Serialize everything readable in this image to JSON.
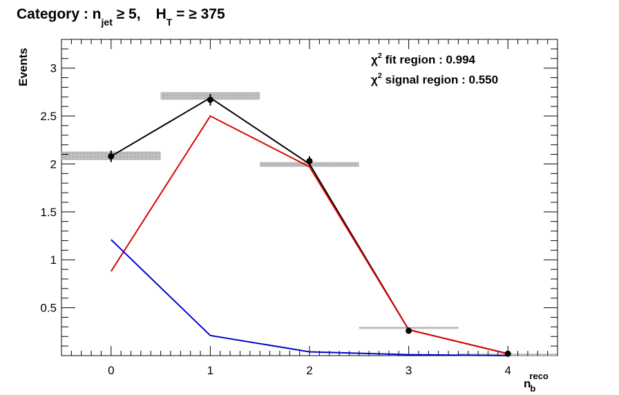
{
  "title": {
    "prefix": "Category : n",
    "njet_sub": "jet",
    "njet_rel": " ≥ 5,",
    "ht": "H",
    "ht_sub": "T",
    "ht_rel": " = ≥ 375"
  },
  "annotations": {
    "fit_region_label": " fit region : 0.994",
    "signal_region_label": " signal region : 0.550",
    "chi": "χ",
    "sup": "2"
  },
  "chart_data": {
    "type": "line",
    "ylabel": "Events",
    "xlabel_main": "n",
    "xlabel_sub": "b",
    "xlabel_sup": "reco",
    "xlim": [
      -0.5,
      4.5
    ],
    "ylim": [
      0.0,
      3.3
    ],
    "x_ticks": [
      0,
      1,
      2,
      3,
      4
    ],
    "x_tick_labels": [
      "0",
      "1",
      "2",
      "3",
      "4"
    ],
    "y_ticks": [
      0.5,
      1,
      1.5,
      2,
      2.5,
      3
    ],
    "y_tick_labels": [
      "0.5",
      "1",
      "1.5",
      "2",
      "2.5",
      "3"
    ],
    "data_points": {
      "x": [
        0,
        1,
        2,
        3,
        4
      ],
      "y": [
        2.08,
        2.67,
        2.03,
        0.26,
        0.02
      ],
      "yerr": [
        0.06,
        0.06,
        0.05,
        0.01,
        0.005
      ]
    },
    "uncertainty_bands": [
      {
        "center": 0,
        "low": 2.04,
        "high": 2.13
      },
      {
        "center": 1,
        "low": 2.67,
        "high": 2.75
      },
      {
        "center": 2,
        "low": 1.97,
        "high": 2.02
      },
      {
        "center": 3,
        "low": 0.28,
        "high": 0.3
      },
      {
        "center": 4,
        "low": 0.01,
        "high": 0.02
      }
    ],
    "series": [
      {
        "color": "#000000",
        "x": [
          0,
          1,
          2,
          3,
          4
        ],
        "values": [
          2.08,
          2.69,
          2.0,
          0.27,
          0.02
        ]
      },
      {
        "color": "#dd0000",
        "x": [
          0,
          1,
          2,
          3,
          4
        ],
        "values": [
          0.88,
          2.5,
          1.97,
          0.27,
          0.02
        ]
      },
      {
        "color": "#0000cc",
        "x": [
          0,
          1,
          2,
          3,
          4
        ],
        "values": [
          1.21,
          0.21,
          0.04,
          0.01,
          0.0
        ]
      }
    ]
  }
}
